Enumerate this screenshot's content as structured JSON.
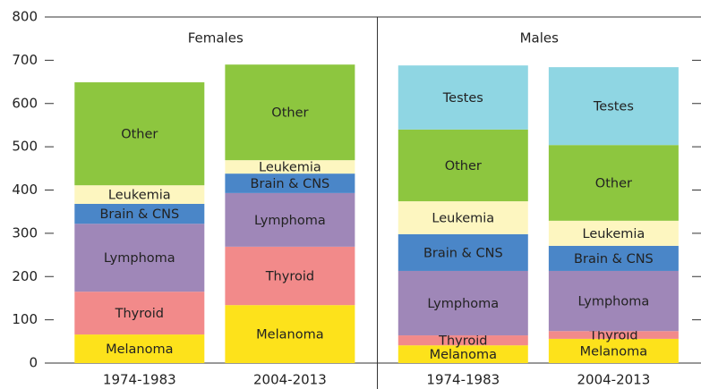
{
  "chart_data": {
    "type": "stacked-bar",
    "ylim": [
      0,
      800
    ],
    "yticks": [
      0,
      100,
      200,
      300,
      400,
      500,
      600,
      700,
      800
    ],
    "panels": [
      {
        "title": "Females",
        "categories": [
          "1974-1983",
          "2004-2013"
        ],
        "series": [
          {
            "name": "Melanoma",
            "color": "#fde21b",
            "values": [
              66,
              134
            ]
          },
          {
            "name": "Thyroid",
            "color": "#f28a8a",
            "values": [
              99,
              135
            ]
          },
          {
            "name": "Lymphoma",
            "color": "#9f87b8",
            "values": [
              157,
              124
            ]
          },
          {
            "name": "Brain & CNS",
            "color": "#4a86c8",
            "values": [
              46,
              45
            ]
          },
          {
            "name": "Leukemia",
            "color": "#fdf6c0",
            "values": [
              43,
              31
            ]
          },
          {
            "name": "Other",
            "color": "#8dc63f",
            "values": [
              238,
              221
            ]
          }
        ]
      },
      {
        "title": "Males",
        "categories": [
          "1974-1983",
          "2004-2013"
        ],
        "series": [
          {
            "name": "Melanoma",
            "color": "#fde21b",
            "values": [
              41,
              56
            ]
          },
          {
            "name": "Thyroid",
            "color": "#f28a8a",
            "values": [
              23,
              18
            ]
          },
          {
            "name": "Lymphoma",
            "color": "#9f87b8",
            "values": [
              149,
              139
            ]
          },
          {
            "name": "Brain & CNS",
            "color": "#4a86c8",
            "values": [
              85,
              58
            ]
          },
          {
            "name": "Leukemia",
            "color": "#fdf6c0",
            "values": [
              76,
              58
            ]
          },
          {
            "name": "Other",
            "color": "#8dc63f",
            "values": [
              166,
              175
            ]
          },
          {
            "name": "Testes",
            "color": "#8fd6e3",
            "values": [
              148,
              180
            ]
          }
        ]
      }
    ]
  }
}
